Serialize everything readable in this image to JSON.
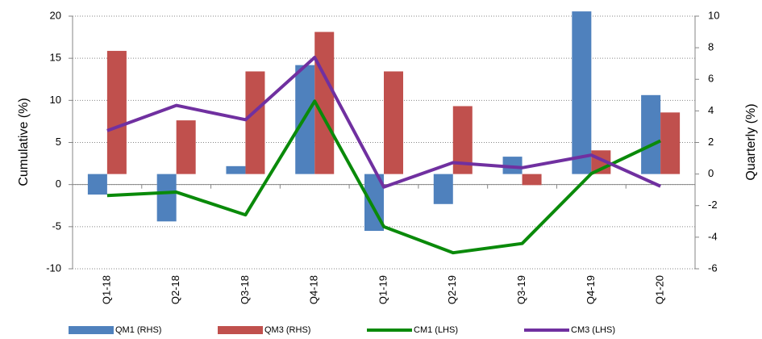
{
  "chart_data": {
    "type": "combo",
    "y_label": "Cumulative (%)",
    "y2_label": "Quarterly (%)",
    "categories": [
      "Q1-18",
      "Q2-18",
      "Q3-18",
      "Q4-18",
      "Q1-19",
      "Q2-19",
      "Q3-19",
      "Q4-19",
      "Q1-20"
    ],
    "ylim": [
      -10,
      20
    ],
    "yticks": [
      -10,
      -5,
      0,
      5,
      10,
      15,
      20
    ],
    "y2lim": [
      -6,
      10
    ],
    "y2ticks": [
      -6,
      -4,
      -2,
      0,
      2,
      4,
      6,
      8,
      10
    ],
    "grid": true,
    "legend": "bottom",
    "series": [
      {
        "name": "QM1 (RHS)",
        "type": "bar",
        "axis": "y2",
        "color": "#4f81bd",
        "values": [
          -1.3,
          -3.0,
          0.5,
          6.9,
          -3.6,
          -1.9,
          1.1,
          10.3,
          5.0
        ]
      },
      {
        "name": "QM3 (RHS)",
        "type": "bar",
        "axis": "y2",
        "color": "#c0504d",
        "values": [
          7.8,
          3.4,
          6.5,
          9.0,
          6.5,
          4.3,
          -0.7,
          1.5,
          3.9
        ]
      },
      {
        "name": "CM1 (LHS)",
        "type": "line",
        "color": "#0a8a0a",
        "values": [
          -1.3,
          -0.9,
          -3.6,
          9.9,
          -5.0,
          -8.1,
          -7.0,
          1.3,
          5.2
        ]
      },
      {
        "name": "CM3 (LHS)",
        "type": "line",
        "color": "#7030a0",
        "values": [
          6.4,
          9.4,
          7.7,
          15.1,
          -0.3,
          2.6,
          2.0,
          3.5,
          -0.2
        ]
      }
    ]
  }
}
